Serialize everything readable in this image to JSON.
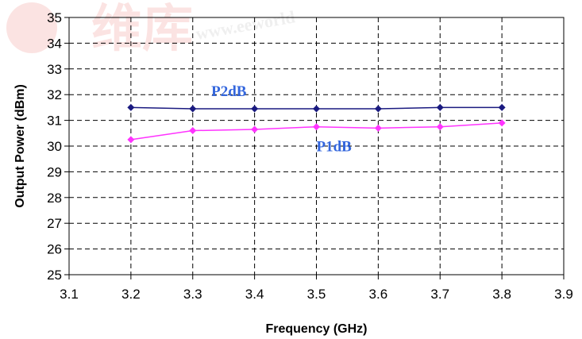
{
  "chart_data": {
    "type": "line",
    "title": "",
    "xlabel": "Frequency (GHz)",
    "ylabel": "Output Power (dBm)",
    "xlim": [
      3.1,
      3.9
    ],
    "ylim": [
      25,
      35
    ],
    "x_ticks": [
      "3.1",
      "3.2",
      "3.3",
      "3.4",
      "3.5",
      "3.6",
      "3.7",
      "3.8",
      "3.9"
    ],
    "y_ticks": [
      "25",
      "26",
      "27",
      "28",
      "29",
      "30",
      "31",
      "32",
      "33",
      "34",
      "35"
    ],
    "grid": true,
    "legend": "none",
    "x": [
      3.2,
      3.3,
      3.4,
      3.5,
      3.6,
      3.7,
      3.8
    ],
    "series": [
      {
        "name": "P2dB",
        "color": "#1a1a80",
        "label_color": "#3366dd",
        "values": [
          31.5,
          31.45,
          31.45,
          31.45,
          31.45,
          31.5,
          31.5
        ]
      },
      {
        "name": "P1dB",
        "color": "#ff33ff",
        "label_color": "#3366dd",
        "values": [
          30.25,
          30.6,
          30.65,
          30.75,
          30.7,
          30.75,
          30.9
        ]
      }
    ],
    "annotations": [
      "P2dB",
      "P1dB"
    ]
  },
  "watermark_text": "www.eeworld"
}
